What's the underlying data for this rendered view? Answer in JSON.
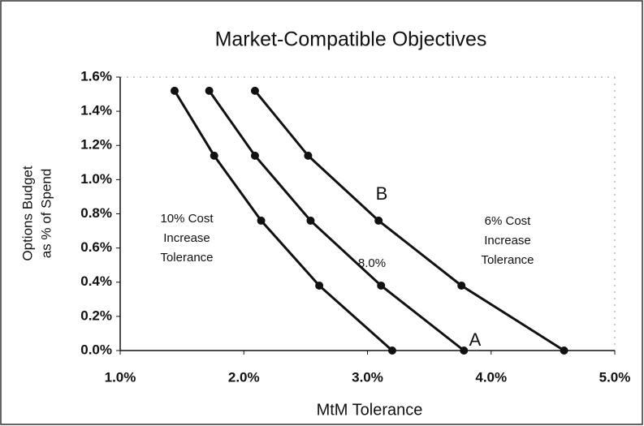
{
  "chart_data": {
    "type": "line",
    "title": "Market-Compatible Objectives",
    "xlabel": "MtM Tolerance",
    "ylabel": [
      "Options Budget",
      "as % of Spend"
    ],
    "xlim": [
      1.0,
      5.0
    ],
    "ylim": [
      0.0,
      1.6
    ],
    "xticks": [
      {
        "value": 1.0,
        "label": "1.0%"
      },
      {
        "value": 2.0,
        "label": "2.0%"
      },
      {
        "value": 3.0,
        "label": "3.0%"
      },
      {
        "value": 4.0,
        "label": "4.0%"
      },
      {
        "value": 5.0,
        "label": "5.0%"
      }
    ],
    "yticks": [
      {
        "value": 0.0,
        "label": "0.0%"
      },
      {
        "value": 0.2,
        "label": "0.2%"
      },
      {
        "value": 0.4,
        "label": "0.4%"
      },
      {
        "value": 0.6,
        "label": "0.6%"
      },
      {
        "value": 0.8,
        "label": "0.8%"
      },
      {
        "value": 1.0,
        "label": "1.0%"
      },
      {
        "value": 1.2,
        "label": "1.2%"
      },
      {
        "value": 1.4,
        "label": "1.4%"
      },
      {
        "value": 1.6,
        "label": "1.6%"
      }
    ],
    "series": [
      {
        "color": "#111111",
        "x": [
          1.44,
          1.76,
          2.14,
          2.61,
          3.2
        ],
        "values": [
          1.52,
          1.14,
          0.76,
          0.38,
          0.0
        ]
      },
      {
        "color": "#111111",
        "x": [
          1.72,
          2.09,
          2.54,
          3.11,
          3.78
        ],
        "values": [
          1.52,
          1.14,
          0.76,
          0.38,
          0.0
        ]
      },
      {
        "color": "#111111",
        "x": [
          2.09,
          2.52,
          3.09,
          3.76,
          4.59
        ],
        "values": [
          1.52,
          1.14,
          0.76,
          0.38,
          0.0
        ]
      }
    ],
    "annotations": [
      {
        "text": [
          "10% Cost",
          "Increase",
          "Tolerance"
        ]
      },
      {
        "text": [
          "8.0%"
        ]
      },
      {
        "text": [
          "6% Cost",
          "Increase",
          "Tolerance"
        ]
      },
      {
        "text": [
          "B"
        ]
      },
      {
        "text": [
          "A"
        ]
      }
    ]
  }
}
